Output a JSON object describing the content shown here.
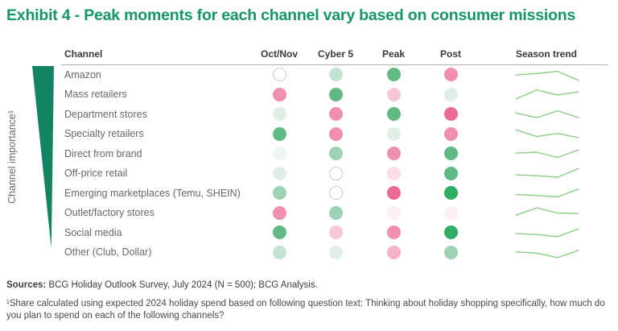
{
  "title": "Exhibit 4 - Peak moments for each channel vary based on consumer missions",
  "side_label": "Channel importance¹",
  "header": {
    "channel": "Channel",
    "moments": [
      "Oct/Nov",
      "Cyber 5",
      "Peak",
      "Post"
    ],
    "trend": "Season trend"
  },
  "colors": {
    "title": "#14966b",
    "wedge": "#128464",
    "sparkline": "#8ccd88",
    "divider": "#a9aeac",
    "green_dark": "#2fad63",
    "green_med": "#61ba84",
    "pink_dark": "#ec6a98",
    "pink_med": "#f08fae"
  },
  "palette": {
    "green-dark": {
      "fill": "#2fad63"
    },
    "green-med": {
      "fill": "#61ba84"
    },
    "green-mlight": {
      "fill": "#9dd3b2"
    },
    "green-light": {
      "fill": "#c3e4d1"
    },
    "green-xlight": {
      "fill": "#dfefe6"
    },
    "green-xxlight": {
      "fill": "#edf6f1"
    },
    "pink-dark": {
      "fill": "#ec6a98"
    },
    "pink-med": {
      "fill": "#f08fae"
    },
    "pink-mlight": {
      "fill": "#f5b1c7"
    },
    "pink-light": {
      "fill": "#f7c6d7"
    },
    "pink-xlight": {
      "fill": "#fadee8"
    },
    "pink-xxlight": {
      "fill": "#fdeff4"
    },
    "white-outline": {
      "fill": "#ffffff",
      "border": "#c8cbca"
    }
  },
  "rows": [
    {
      "label": "Amazon",
      "dots": [
        "white-outline",
        "green-light",
        "green-med",
        "pink-med"
      ],
      "trend": [
        52,
        62,
        78,
        15
      ]
    },
    {
      "label": "Mass retailers",
      "dots": [
        "pink-med",
        "green-med",
        "pink-light",
        "green-xlight"
      ],
      "trend": [
        20,
        82,
        48,
        70
      ]
    },
    {
      "label": "Department stores",
      "dots": [
        "green-xlight",
        "pink-med",
        "green-med",
        "pink-dark"
      ],
      "trend": [
        62,
        30,
        78,
        30
      ]
    },
    {
      "label": "Specialty retailers",
      "dots": [
        "green-med",
        "pink-med",
        "green-xlight",
        "pink-med"
      ],
      "trend": [
        80,
        33,
        55,
        25
      ]
    },
    {
      "label": "Direct from brand",
      "dots": [
        "green-xxlight",
        "green-mlight",
        "pink-med",
        "green-med"
      ],
      "trend": [
        58,
        64,
        28,
        80
      ]
    },
    {
      "label": "Off-price retail",
      "dots": [
        "green-xlight",
        "white-outline",
        "pink-xlight",
        "green-med"
      ],
      "trend": [
        42,
        35,
        25,
        85
      ]
    },
    {
      "label": "Emerging marketplaces (Temu, SHEIN)",
      "dots": [
        "green-mlight",
        "white-outline",
        "pink-dark",
        "green-dark"
      ],
      "trend": [
        45,
        38,
        28,
        82
      ]
    },
    {
      "label": "Outlet/factory stores",
      "dots": [
        "pink-med",
        "green-mlight",
        "pink-xxlight",
        "pink-xxlight"
      ],
      "trend": [
        35,
        85,
        50,
        48
      ]
    },
    {
      "label": "Social media",
      "dots": [
        "green-med",
        "pink-light",
        "pink-med",
        "green-dark"
      ],
      "trend": [
        48,
        40,
        26,
        80
      ]
    },
    {
      "label": "Other (Club, Dollar)",
      "dots": [
        "green-light",
        "green-xlight",
        "pink-mlight",
        "green-mlight"
      ],
      "trend": [
        55,
        45,
        15,
        65
      ]
    }
  ],
  "footer": {
    "sources_label": "Sources:",
    "sources_text": " BCG Holiday Outlook Survey, July 2024 (N = 500); BCG Analysis.",
    "footnote": "¹Share calculated using expected 2024 holiday spend based on following question text: Thinking about holiday shopping specifically, how much do you plan to spend on each of the following channels?"
  },
  "chart_data": {
    "type": "heatmap",
    "title": "Exhibit 4 - Peak moments for each channel vary based on consumer missions",
    "x_categories": [
      "Oct/Nov",
      "Cyber 5",
      "Peak",
      "Post"
    ],
    "y_categories": [
      "Amazon",
      "Mass retailers",
      "Department stores",
      "Specialty retailers",
      "Direct from brand",
      "Off-price retail",
      "Emerging marketplaces (Temu, SHEIN)",
      "Outlet/factory stores",
      "Social media",
      "Other (Club, Dollar)"
    ],
    "y_axis_label": "Channel importance¹ (rows ordered most to least important, shown as tapering wedge)",
    "cell_encoding": "qualitative color intensity; green = stronger moment, pink = weaker moment, white outline = neutral/none",
    "cell_colors": [
      [
        "white-outline",
        "green-light",
        "green-med",
        "pink-med"
      ],
      [
        "pink-med",
        "green-med",
        "pink-light",
        "green-xlight"
      ],
      [
        "green-xlight",
        "pink-med",
        "green-med",
        "pink-dark"
      ],
      [
        "green-med",
        "pink-med",
        "green-xlight",
        "pink-med"
      ],
      [
        "green-xxlight",
        "green-mlight",
        "pink-med",
        "green-med"
      ],
      [
        "green-xlight",
        "white-outline",
        "pink-xlight",
        "green-med"
      ],
      [
        "green-mlight",
        "white-outline",
        "pink-dark",
        "green-dark"
      ],
      [
        "pink-med",
        "green-mlight",
        "pink-xxlight",
        "pink-xxlight"
      ],
      [
        "green-med",
        "pink-light",
        "pink-med",
        "green-dark"
      ],
      [
        "green-light",
        "green-xlight",
        "pink-mlight",
        "green-mlight"
      ]
    ],
    "season_trend": {
      "type": "line",
      "note": "sparkline per channel, 4 points across the season, relative height 0-100",
      "series": [
        {
          "name": "Amazon",
          "values": [
            52,
            62,
            78,
            15
          ]
        },
        {
          "name": "Mass retailers",
          "values": [
            20,
            82,
            48,
            70
          ]
        },
        {
          "name": "Department stores",
          "values": [
            62,
            30,
            78,
            30
          ]
        },
        {
          "name": "Specialty retailers",
          "values": [
            80,
            33,
            55,
            25
          ]
        },
        {
          "name": "Direct from brand",
          "values": [
            58,
            64,
            28,
            80
          ]
        },
        {
          "name": "Off-price retail",
          "values": [
            42,
            35,
            25,
            85
          ]
        },
        {
          "name": "Emerging marketplaces (Temu, SHEIN)",
          "values": [
            45,
            38,
            28,
            82
          ]
        },
        {
          "name": "Outlet/factory stores",
          "values": [
            35,
            85,
            50,
            48
          ]
        },
        {
          "name": "Social media",
          "values": [
            48,
            40,
            26,
            80
          ]
        },
        {
          "name": "Other (Club, Dollar)",
          "values": [
            55,
            45,
            15,
            65
          ]
        }
      ]
    },
    "legend_position": "none",
    "grid": false
  }
}
